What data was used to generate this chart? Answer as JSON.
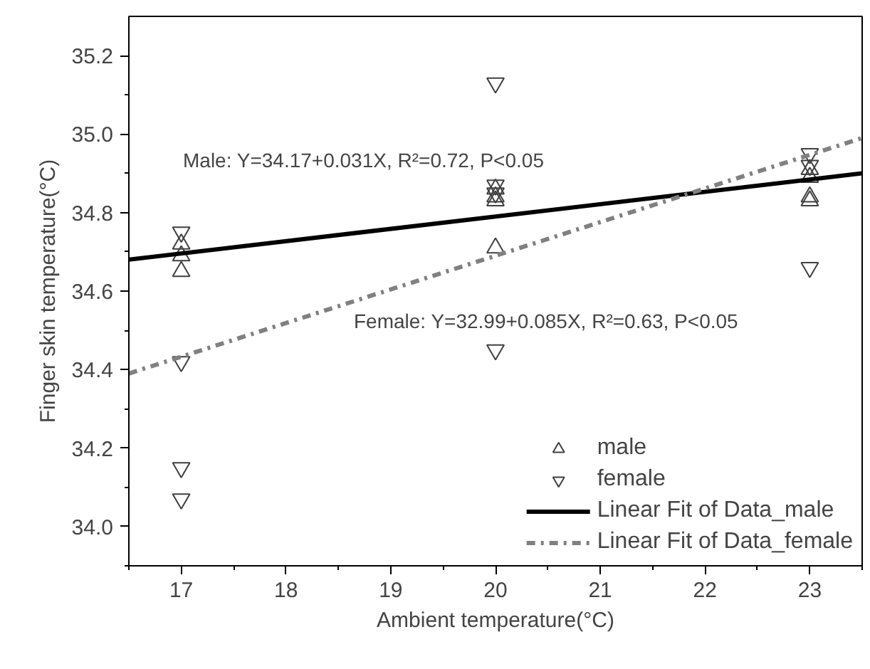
{
  "chart_data": {
    "type": "scatter",
    "xlabel": "Ambient temperature(°C)",
    "ylabel": "Finger skin temperature(°C)",
    "xlim": [
      16.5,
      23.5
    ],
    "ylim": [
      33.9,
      35.3
    ],
    "xticks": [
      17,
      18,
      19,
      20,
      21,
      22,
      23
    ],
    "yticks": [
      {
        "value": 34.0,
        "label": "34.0"
      },
      34.2,
      34.4,
      34.6,
      34.8,
      {
        "value": 35.0,
        "label": "35.0"
      },
      35.2
    ],
    "grid": false,
    "legend": "bottom right",
    "series": [
      {
        "name": "male",
        "color": "#404040",
        "marker": "triangle",
        "x": [
          17,
          17,
          17,
          20,
          20,
          20,
          20,
          23,
          23,
          23,
          23
        ],
        "values": [
          34.72,
          34.69,
          34.65,
          34.86,
          34.84,
          34.83,
          34.71,
          34.91,
          34.89,
          34.84,
          34.83
        ]
      },
      {
        "name": "female",
        "color": "#404040",
        "marker": "triangle_down",
        "x": [
          17,
          17,
          17,
          17,
          20,
          20,
          20,
          20,
          23,
          23,
          23
        ],
        "values": [
          34.75,
          34.42,
          34.15,
          34.07,
          35.13,
          34.87,
          34.85,
          34.45,
          34.95,
          34.92,
          34.66
        ]
      },
      {
        "name": "Linear Fit of Data_male",
        "type": "line",
        "color": "#000000",
        "line_style": "solid",
        "x": [
          16.5,
          23.5
        ],
        "values": [
          34.68,
          34.9
        ]
      },
      {
        "name": "Linear Fit of Data_female",
        "type": "line",
        "color": "#808080",
        "line_style": "dashdot",
        "x": [
          16.5,
          23.5
        ],
        "values": [
          34.39,
          34.99
        ]
      }
    ],
    "annotations": [
      "Male: Y=34.17+0.031X, R²=0.72, P<0.05",
      "Female: Y=32.99+0.085X, R²=0.63, P<0.05"
    ]
  }
}
